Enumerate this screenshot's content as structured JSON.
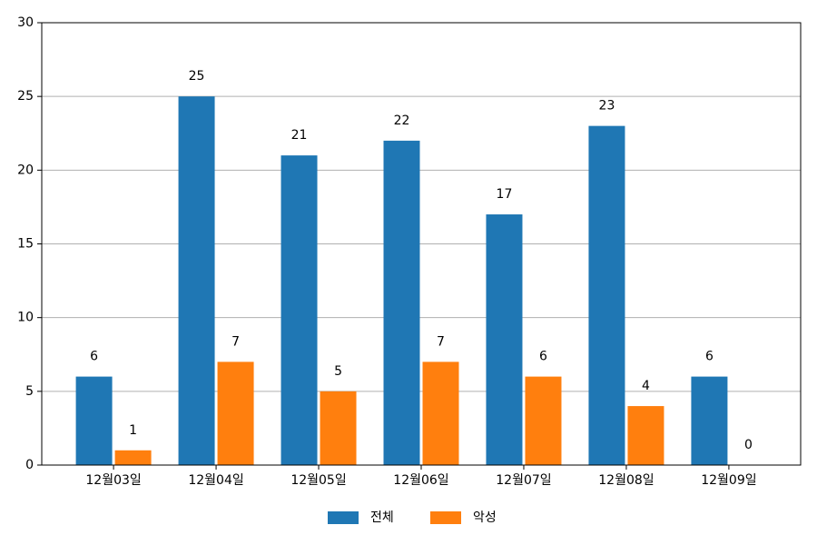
{
  "chart_data": {
    "type": "bar",
    "categories": [
      "12월03일",
      "12월04일",
      "12월05일",
      "12월06일",
      "12월07일",
      "12월08일",
      "12월09일"
    ],
    "series": [
      {
        "name": "전체",
        "color": "#1f77b4",
        "values": [
          6,
          25,
          21,
          22,
          17,
          23,
          6
        ]
      },
      {
        "name": "악성",
        "color": "#ff7f0e",
        "values": [
          1,
          7,
          5,
          7,
          6,
          4,
          0
        ]
      }
    ],
    "ylim": [
      0,
      30
    ],
    "yticks": [
      0,
      5,
      10,
      15,
      20,
      25,
      30
    ],
    "grid": true,
    "legend": "bottom"
  }
}
